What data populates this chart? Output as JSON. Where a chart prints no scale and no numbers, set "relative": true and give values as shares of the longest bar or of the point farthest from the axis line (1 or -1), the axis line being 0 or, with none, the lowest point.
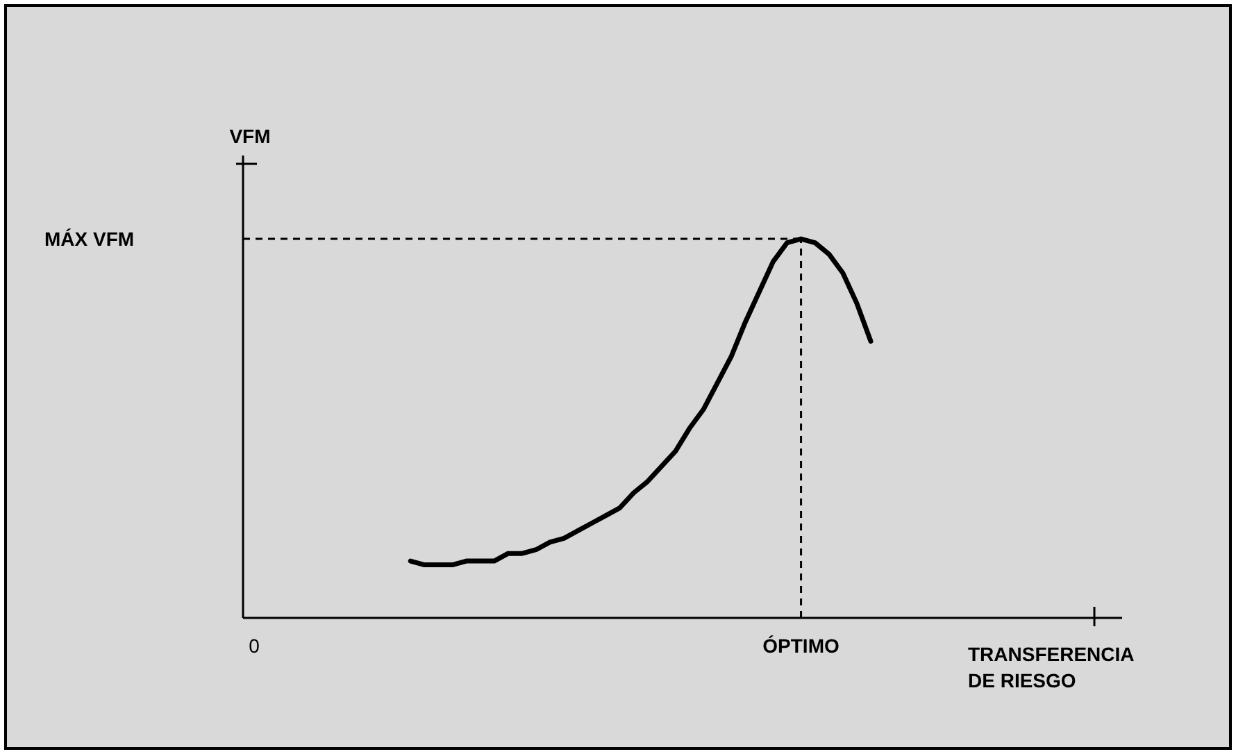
{
  "chart_data": {
    "type": "line",
    "relative": true,
    "xlabel": "TRANSFERENCIA DE RIESGO",
    "categories": [
      null,
      null,
      null,
      null,
      null,
      null,
      null,
      null,
      null,
      null,
      null,
      null,
      null,
      null,
      null,
      null,
      null,
      null,
      null,
      null,
      null,
      null,
      null,
      null,
      null,
      null,
      null,
      null,
      null,
      null,
      null,
      null,
      null,
      null
    ],
    "series": [
      {
        "color": "#000000",
        "values": [
          0.15,
          0.14,
          0.14,
          0.14,
          0.15,
          0.15,
          0.15,
          0.17,
          0.17,
          0.18,
          0.2,
          0.21,
          0.23,
          0.25,
          0.27,
          0.29,
          0.33,
          0.36,
          0.4,
          0.44,
          0.5,
          0.55,
          0.62,
          0.69,
          0.78,
          0.86,
          0.94,
          0.99,
          1,
          0.99,
          0.96,
          0.91,
          0.83,
          0.73
        ]
      }
    ],
    "annotations": [
      "MÁX VFM",
      "ÓPTIMO",
      "0",
      "VFM"
    ],
    "line_style": "solid"
  }
}
